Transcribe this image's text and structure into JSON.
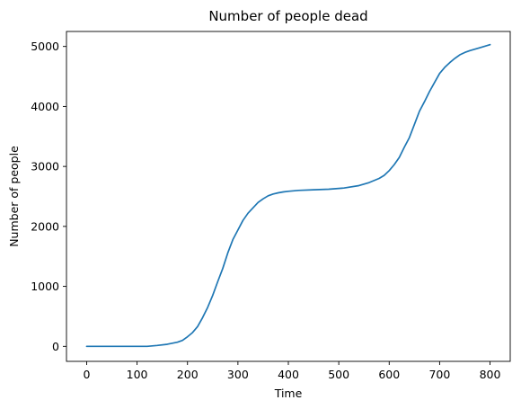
{
  "chart_data": {
    "type": "line",
    "title": "Number of people dead",
    "xlabel": "Time",
    "ylabel": "Number of people",
    "xlim": [
      -40,
      840
    ],
    "ylim": [
      -250,
      5250
    ],
    "xticks": [
      0,
      100,
      200,
      300,
      400,
      500,
      600,
      700,
      800
    ],
    "yticks": [
      0,
      1000,
      2000,
      3000,
      4000,
      5000
    ],
    "grid": false,
    "legend": "none",
    "series": [
      {
        "color": "#1f77b4",
        "x": [
          0,
          60,
          120,
          140,
          160,
          180,
          190,
          200,
          210,
          220,
          230,
          240,
          250,
          260,
          270,
          280,
          290,
          300,
          310,
          320,
          330,
          340,
          350,
          360,
          370,
          380,
          390,
          400,
          420,
          450,
          480,
          510,
          540,
          560,
          580,
          590,
          600,
          610,
          620,
          630,
          640,
          650,
          660,
          670,
          680,
          690,
          700,
          710,
          720,
          730,
          740,
          750,
          760,
          780,
          800
        ],
        "y": [
          0,
          0,
          0,
          15,
          35,
          70,
          100,
          160,
          230,
          330,
          480,
          650,
          850,
          1080,
          1300,
          1560,
          1780,
          1940,
          2100,
          2220,
          2310,
          2400,
          2460,
          2510,
          2540,
          2560,
          2575,
          2585,
          2600,
          2610,
          2620,
          2640,
          2680,
          2730,
          2800,
          2850,
          2930,
          3030,
          3150,
          3320,
          3480,
          3700,
          3920,
          4080,
          4250,
          4400,
          4550,
          4650,
          4730,
          4800,
          4860,
          4900,
          4930,
          4980,
          5030
        ]
      }
    ]
  }
}
